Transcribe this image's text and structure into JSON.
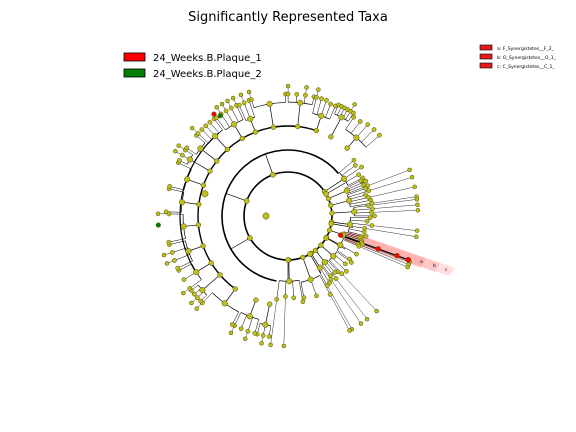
{
  "title": "Significantly Represented Taxa",
  "legend": [
    {
      "label": "24_Weeks.B.Plaque_1",
      "color": "#ff0000"
    },
    {
      "label": "24_Weeks.B.Plaque_2",
      "color": "#008000"
    }
  ],
  "clade_legend": [
    {
      "label": "a: F_Synergistetes__F_2_",
      "color": "#e41a1c"
    },
    {
      "label": "b: O_Synergistetes__O_1_",
      "color": "#e41a1c"
    },
    {
      "label": "c: C_Synergistetes__C_1_",
      "color": "#e41a1c"
    }
  ],
  "highlight_letters": [
    "a",
    "b",
    "c"
  ],
  "colors": {
    "node": "#bfbf1f",
    "highlight_fill": "#ff8080",
    "enriched_red": "#ff0000",
    "enriched_green": "#008000"
  }
}
